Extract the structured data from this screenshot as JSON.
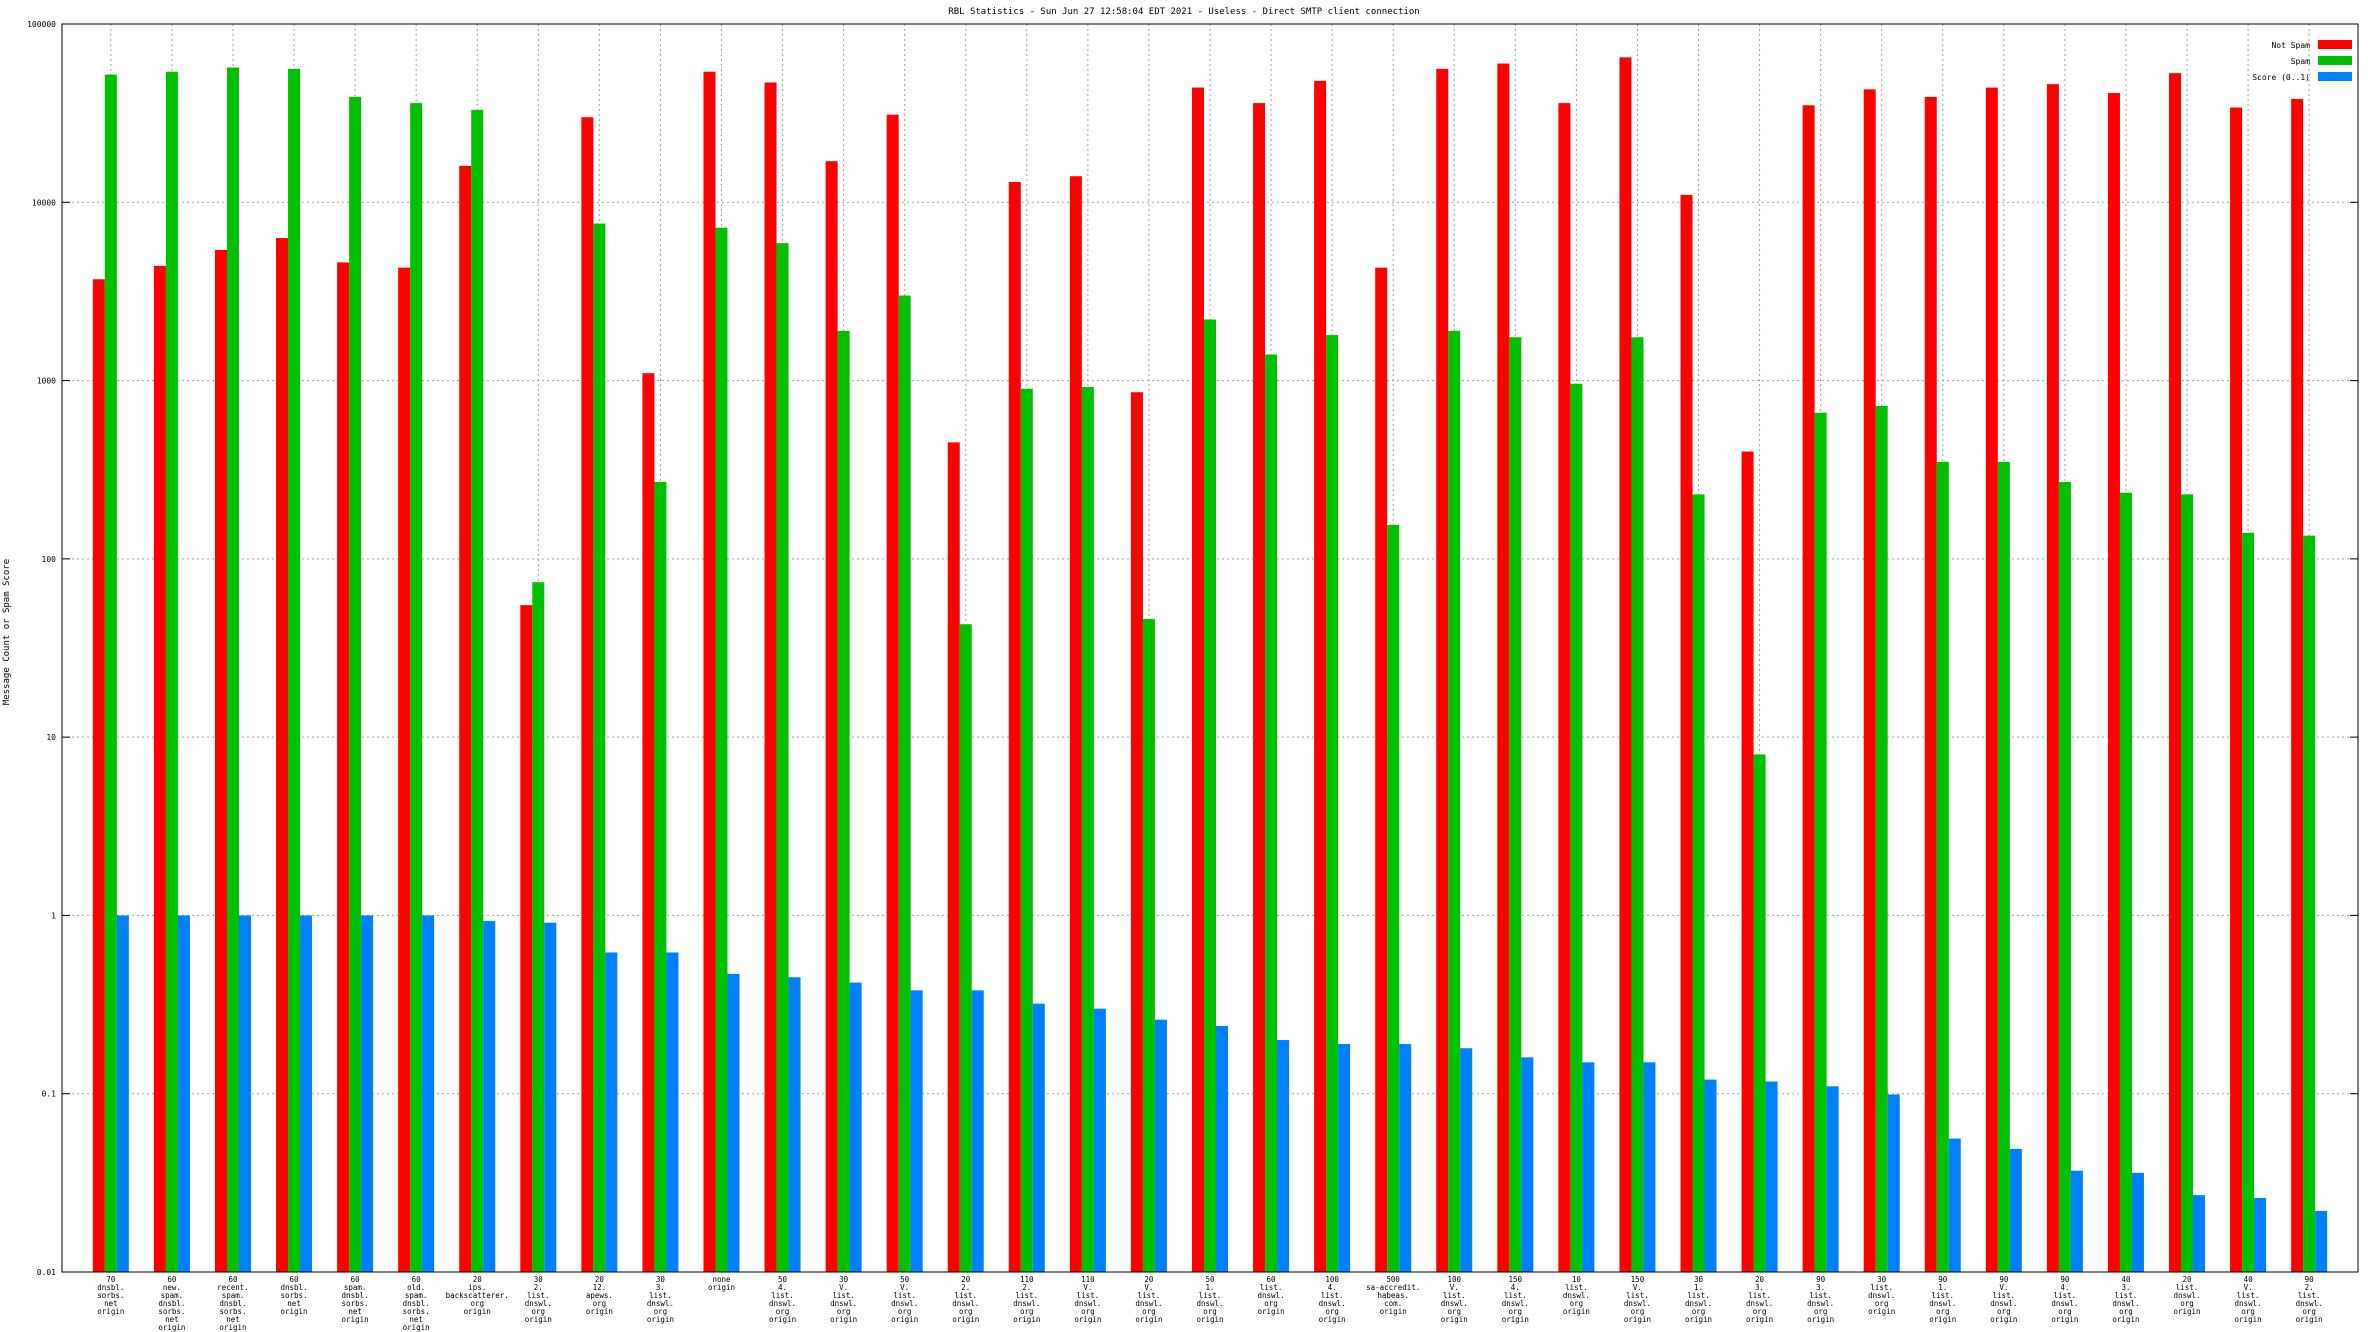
{
  "chart_data": {
    "type": "bar",
    "title": "RBL Statistics - Sun Jun 27 12:58:04 EDT 2021 - Useless - Direct SMTP client connection",
    "ylabel": "Message Count or Spam Score",
    "xlabel": "",
    "yscale": "log",
    "ylim": [
      0.01,
      100000
    ],
    "yticks": [
      {
        "value": 0.01,
        "label": "0.01"
      },
      {
        "value": 0.1,
        "label": "0.1"
      },
      {
        "value": 1,
        "label": "1"
      },
      {
        "value": 10,
        "label": "10"
      },
      {
        "value": 100,
        "label": "100"
      },
      {
        "value": 1000,
        "label": "1000"
      },
      {
        "value": 10000,
        "label": "10000"
      },
      {
        "value": 100000,
        "label": "100000"
      }
    ],
    "grid": true,
    "legend_position": "top-right",
    "categories": [
      [
        "70",
        "dnsbl.",
        "sorbs.",
        "net",
        "origin"
      ],
      [
        "60",
        "new.",
        "spam.",
        "dnsbl.",
        "sorbs.",
        "net",
        "origin"
      ],
      [
        "60",
        "recent.",
        "spam.",
        "dnsbl.",
        "sorbs.",
        "net",
        "origin"
      ],
      [
        "60",
        "dnsbl.",
        "sorbs.",
        "net",
        "origin"
      ],
      [
        "60",
        "spam.",
        "dnsbl.",
        "sorbs.",
        "net",
        "origin"
      ],
      [
        "60",
        "old.",
        "spam.",
        "dnsbl.",
        "sorbs.",
        "net",
        "origin"
      ],
      [
        "20",
        "ips.",
        "backscatterer.",
        "org",
        "origin"
      ],
      [
        "30",
        "2.",
        "list.",
        "dnswl.",
        "org",
        "origin"
      ],
      [
        "20",
        "12.",
        "apews.",
        "org",
        "origin"
      ],
      [
        "30",
        "3.",
        "list.",
        "dnswl.",
        "org",
        "origin"
      ],
      [
        "none",
        "origin"
      ],
      [
        "50",
        "4.",
        "list.",
        "dnswl.",
        "org",
        "origin"
      ],
      [
        "30",
        "V.",
        "list.",
        "dnswl.",
        "org",
        "origin"
      ],
      [
        "50",
        "V.",
        "list.",
        "dnswl.",
        "org",
        "origin"
      ],
      [
        "20",
        "2.",
        "list.",
        "dnswl.",
        "org",
        "origin"
      ],
      [
        "110",
        "2.",
        "list.",
        "dnswl.",
        "org",
        "origin"
      ],
      [
        "110",
        "V.",
        "list.",
        "dnswl.",
        "org",
        "origin"
      ],
      [
        "20",
        "V.",
        "list.",
        "dnswl.",
        "org",
        "origin"
      ],
      [
        "50",
        "1.",
        "list.",
        "dnswl.",
        "org",
        "origin"
      ],
      [
        "60",
        "list.",
        "dnswl.",
        "org",
        "origin"
      ],
      [
        "100",
        "4.",
        "list.",
        "dnswl.",
        "org",
        "origin"
      ],
      [
        "500",
        "sa-accredit.",
        "habeas.",
        "com.",
        "origin"
      ],
      [
        "100",
        "V.",
        "list.",
        "dnswl.",
        "org",
        "origin"
      ],
      [
        "150",
        "4.",
        "list.",
        "dnswl.",
        "org",
        "origin"
      ],
      [
        "10",
        "list.",
        "dnswl.",
        "org",
        "origin"
      ],
      [
        "150",
        "V.",
        "list.",
        "dnswl.",
        "org",
        "origin"
      ],
      [
        "30",
        "1.",
        "list.",
        "dnswl.",
        "org",
        "origin"
      ],
      [
        "20",
        "3.",
        "list.",
        "dnswl.",
        "org",
        "origin"
      ],
      [
        "90",
        "3.",
        "list.",
        "dnswl.",
        "org",
        "origin"
      ],
      [
        "30",
        "list.",
        "dnswl.",
        "org",
        "origin"
      ],
      [
        "90",
        "1.",
        "list.",
        "dnswl.",
        "org",
        "origin"
      ],
      [
        "90",
        "V.",
        "list.",
        "dnswl.",
        "org",
        "origin"
      ],
      [
        "90",
        "4.",
        "list.",
        "dnswl.",
        "org",
        "origin"
      ],
      [
        "40",
        "3.",
        "list.",
        "dnswl.",
        "org",
        "origin"
      ],
      [
        "20",
        "list.",
        "dnswl.",
        "org",
        "origin"
      ],
      [
        "40",
        "V.",
        "list.",
        "dnswl.",
        "org",
        "origin"
      ],
      [
        "90",
        "2.",
        "list.",
        "dnswl.",
        "org",
        "origin"
      ]
    ],
    "series": [
      {
        "name": "Not Spam",
        "color": "#ff0000",
        "values": [
          3700,
          4400,
          5400,
          6300,
          4600,
          4300,
          16000,
          55,
          30000,
          1100,
          54000,
          47000,
          17000,
          31000,
          450,
          13000,
          14000,
          860,
          44000,
          36000,
          48000,
          4300,
          56000,
          60000,
          36000,
          65000,
          11000,
          400,
          35000,
          43000,
          39000,
          44000,
          46000,
          41000,
          53000,
          34000,
          38000
        ]
      },
      {
        "name": "Spam",
        "color": "#00c000",
        "values": [
          52000,
          54000,
          57000,
          56000,
          39000,
          36000,
          33000,
          74,
          7600,
          270,
          7200,
          5900,
          1900,
          3000,
          43,
          900,
          920,
          46,
          2200,
          1400,
          1800,
          155,
          1900,
          1750,
          960,
          1750,
          230,
          8,
          660,
          720,
          350,
          350,
          270,
          235,
          230,
          140,
          135
        ]
      },
      {
        "name": "Score (0..1)",
        "color": "#0080ff",
        "values": [
          1.0,
          1.0,
          1.0,
          1.0,
          1.0,
          1.0,
          0.93,
          0.91,
          0.62,
          0.62,
          0.47,
          0.45,
          0.42,
          0.38,
          0.38,
          0.32,
          0.3,
          0.26,
          0.24,
          0.2,
          0.19,
          0.19,
          0.18,
          0.16,
          0.15,
          0.15,
          0.12,
          0.117,
          0.11,
          0.099,
          0.056,
          0.049,
          0.037,
          0.036,
          0.027,
          0.026,
          0.022
        ]
      }
    ]
  }
}
